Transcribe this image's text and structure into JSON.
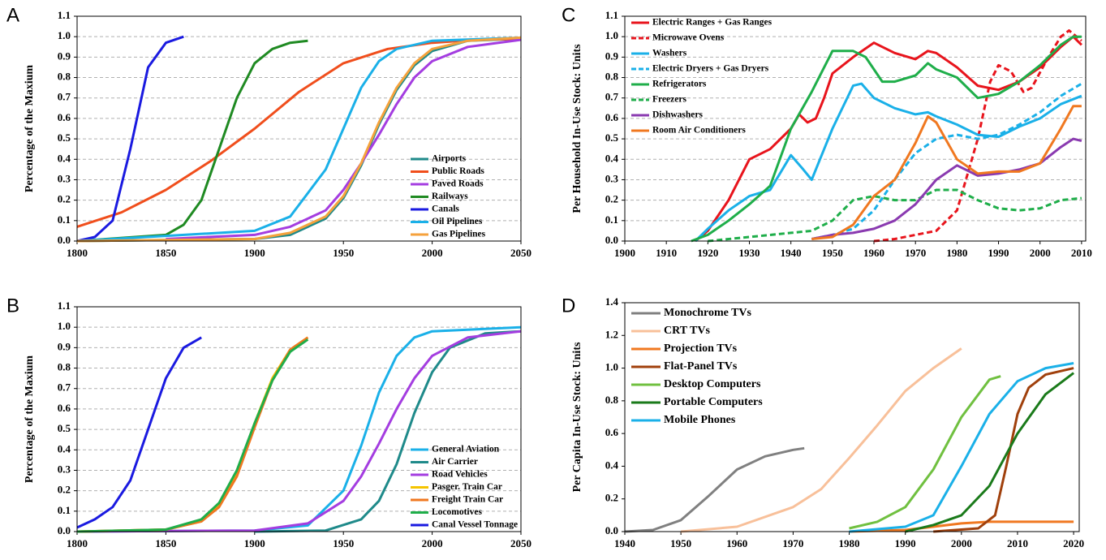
{
  "chart_data": [
    {
      "type": "line",
      "panel": "A",
      "ylabel": "Percentage of the Maxium",
      "grid": true,
      "legend": "lower right",
      "xlim": [
        1800,
        2050
      ],
      "xticks": [
        1800,
        1850,
        1900,
        1950,
        2000,
        2050
      ],
      "ylim": [
        0,
        1.1
      ],
      "yticks": [
        {
          "value": 0,
          "label": "0.0"
        },
        0.1,
        0.2,
        0.3,
        0.4,
        0.5,
        0.6,
        0.7,
        0.8,
        0.9,
        {
          "value": 1,
          "label": "1.0"
        },
        1.1
      ],
      "series": [
        {
          "name": "Airports",
          "color": "#1f8a8a",
          "x": [
            1800,
            1900,
            1920,
            1940,
            1950,
            1960,
            1970,
            1980,
            1990,
            2000,
            2020,
            2050
          ],
          "values": [
            0,
            0.01,
            0.03,
            0.11,
            0.21,
            0.37,
            0.57,
            0.74,
            0.86,
            0.93,
            0.98,
            0.99
          ]
        },
        {
          "name": "Public Roads",
          "color": "#f04e1c",
          "x": [
            1800,
            1825,
            1850,
            1875,
            1900,
            1925,
            1950,
            1975,
            2000,
            2025,
            2050
          ],
          "values": [
            0.07,
            0.14,
            0.25,
            0.39,
            0.55,
            0.73,
            0.87,
            0.94,
            0.97,
            0.985,
            0.99
          ]
        },
        {
          "name": "Paved Roads",
          "color": "#a43de0",
          "x": [
            1850,
            1900,
            1920,
            1940,
            1950,
            1960,
            1970,
            1980,
            1990,
            2000,
            2020,
            2050
          ],
          "values": [
            0.01,
            0.03,
            0.07,
            0.15,
            0.25,
            0.38,
            0.52,
            0.67,
            0.8,
            0.88,
            0.95,
            0.985
          ]
        },
        {
          "name": "Railways",
          "color": "#1f8a22",
          "x": [
            1800,
            1850,
            1860,
            1870,
            1880,
            1890,
            1900,
            1910,
            1920,
            1930
          ],
          "values": [
            0,
            0.03,
            0.08,
            0.2,
            0.45,
            0.7,
            0.87,
            0.94,
            0.97,
            0.98
          ]
        },
        {
          "name": "Canals",
          "color": "#1a1ae0",
          "x": [
            1800,
            1810,
            1820,
            1830,
            1840,
            1850,
            1860
          ],
          "values": [
            0,
            0.02,
            0.1,
            0.45,
            0.85,
            0.97,
            1.0
          ]
        },
        {
          "name": "Oil Pipelines",
          "color": "#1ab0e8",
          "x": [
            1800,
            1900,
            1920,
            1940,
            1950,
            1960,
            1970,
            1980,
            2000,
            2050
          ],
          "values": [
            0,
            0.05,
            0.12,
            0.35,
            0.55,
            0.75,
            0.88,
            0.94,
            0.98,
            0.995
          ]
        },
        {
          "name": "Gas Pipelines",
          "color": "#f5a23c",
          "x": [
            1800,
            1900,
            1920,
            1940,
            1950,
            1960,
            1970,
            1980,
            1990,
            2000,
            2020,
            2050
          ],
          "values": [
            0,
            0.01,
            0.04,
            0.12,
            0.22,
            0.38,
            0.58,
            0.75,
            0.87,
            0.94,
            0.98,
            0.995
          ]
        }
      ]
    },
    {
      "type": "line",
      "panel": "C",
      "ylabel": "Per Household In-Use Stock: Units",
      "grid": true,
      "legend": "upper left",
      "xlim": [
        1900,
        2011
      ],
      "xticks": [
        1900,
        1910,
        1920,
        1930,
        1940,
        1950,
        1960,
        1970,
        1980,
        1990,
        2000,
        2010
      ],
      "ylim": [
        0,
        1.1
      ],
      "yticks": [
        {
          "value": 0,
          "label": "0.0"
        },
        0.1,
        0.2,
        0.3,
        0.4,
        0.5,
        0.6,
        0.7,
        0.8,
        0.9,
        {
          "value": 1,
          "label": "1.0"
        },
        1.1
      ],
      "series": [
        {
          "name": "Electric Ranges + Gas Ranges",
          "color": "#e8141c",
          "dash": false,
          "x": [
            1917,
            1920,
            1925,
            1930,
            1935,
            1940,
            1942,
            1944,
            1946,
            1948,
            1950,
            1955,
            1960,
            1965,
            1970,
            1973,
            1975,
            1980,
            1985,
            1990,
            1995,
            2000,
            2005,
            2008,
            2010
          ],
          "values": [
            0,
            0.05,
            0.2,
            0.4,
            0.45,
            0.55,
            0.62,
            0.58,
            0.6,
            0.7,
            0.82,
            0.9,
            0.97,
            0.92,
            0.89,
            0.93,
            0.92,
            0.85,
            0.76,
            0.74,
            0.78,
            0.85,
            0.95,
            1.0,
            0.96
          ]
        },
        {
          "name": "Microwave Ovens",
          "color": "#e8141c",
          "dash": true,
          "x": [
            1960,
            1965,
            1970,
            1975,
            1980,
            1985,
            1988,
            1990,
            1993,
            1996,
            1998,
            2002,
            2005,
            2007,
            2010
          ],
          "values": [
            0,
            0.01,
            0.03,
            0.05,
            0.15,
            0.5,
            0.78,
            0.86,
            0.83,
            0.73,
            0.75,
            0.9,
            1.0,
            1.03,
            0.98
          ]
        },
        {
          "name": "Washers",
          "color": "#1ab0e8",
          "dash": false,
          "x": [
            1917,
            1920,
            1925,
            1930,
            1935,
            1940,
            1943,
            1945,
            1947,
            1950,
            1955,
            1957,
            1960,
            1965,
            1970,
            1973,
            1975,
            1980,
            1985,
            1990,
            1995,
            2000,
            2005,
            2010
          ],
          "values": [
            0,
            0.06,
            0.15,
            0.22,
            0.25,
            0.42,
            0.35,
            0.3,
            0.4,
            0.55,
            0.76,
            0.77,
            0.7,
            0.65,
            0.62,
            0.63,
            0.61,
            0.57,
            0.52,
            0.51,
            0.56,
            0.6,
            0.67,
            0.71
          ]
        },
        {
          "name": "Electric Dryers + Gas Dryers",
          "color": "#1ab0e8",
          "dash": true,
          "x": [
            1945,
            1950,
            1955,
            1960,
            1965,
            1970,
            1975,
            1980,
            1985,
            1990,
            1995,
            2000,
            2005,
            2010
          ],
          "values": [
            0.01,
            0.03,
            0.06,
            0.15,
            0.3,
            0.43,
            0.5,
            0.52,
            0.5,
            0.52,
            0.57,
            0.63,
            0.71,
            0.77
          ]
        },
        {
          "name": "Refrigerators",
          "color": "#1fae4a",
          "dash": false,
          "x": [
            1916,
            1920,
            1925,
            1930,
            1935,
            1940,
            1945,
            1950,
            1955,
            1958,
            1962,
            1965,
            1970,
            1973,
            1975,
            1980,
            1985,
            1990,
            1995,
            2000,
            2005,
            2008,
            2010
          ],
          "values": [
            0,
            0.03,
            0.1,
            0.18,
            0.27,
            0.55,
            0.73,
            0.93,
            0.93,
            0.9,
            0.78,
            0.78,
            0.81,
            0.87,
            0.84,
            0.8,
            0.7,
            0.72,
            0.78,
            0.86,
            0.96,
            1.0,
            1.0
          ]
        },
        {
          "name": "Freezers",
          "color": "#1fae4a",
          "dash": true,
          "x": [
            1920,
            1930,
            1940,
            1945,
            1950,
            1955,
            1960,
            1965,
            1970,
            1975,
            1980,
            1985,
            1990,
            1995,
            2000,
            2005,
            2010
          ],
          "values": [
            0,
            0.02,
            0.04,
            0.05,
            0.1,
            0.2,
            0.22,
            0.2,
            0.2,
            0.25,
            0.25,
            0.2,
            0.16,
            0.15,
            0.16,
            0.2,
            0.21
          ]
        },
        {
          "name": "Dishwashers",
          "color": "#8a3ab0",
          "dash": false,
          "x": [
            1945,
            1950,
            1955,
            1960,
            1965,
            1970,
            1975,
            1980,
            1985,
            1990,
            1995,
            2000,
            2005,
            2008,
            2010
          ],
          "values": [
            0.01,
            0.03,
            0.04,
            0.06,
            0.1,
            0.18,
            0.3,
            0.37,
            0.32,
            0.33,
            0.35,
            0.38,
            0.46,
            0.5,
            0.49
          ]
        },
        {
          "name": "Room Air Conditioners",
          "color": "#f07820",
          "dash": false,
          "x": [
            1945,
            1950,
            1955,
            1960,
            1965,
            1970,
            1973,
            1975,
            1980,
            1985,
            1990,
            1995,
            2000,
            2005,
            2008,
            2010
          ],
          "values": [
            0.01,
            0.02,
            0.08,
            0.22,
            0.3,
            0.48,
            0.61,
            0.58,
            0.4,
            0.33,
            0.34,
            0.34,
            0.38,
            0.55,
            0.66,
            0.66
          ]
        }
      ]
    },
    {
      "type": "line",
      "panel": "B",
      "ylabel": "Percentage of the Maxium",
      "grid": true,
      "legend": "lower right",
      "xlim": [
        1800,
        2050
      ],
      "xticks": [
        1800,
        1850,
        1900,
        1950,
        2000,
        2050
      ],
      "ylim": [
        0,
        1.1
      ],
      "yticks": [
        {
          "value": 0,
          "label": "0.0"
        },
        0.1,
        0.2,
        0.3,
        0.4,
        0.5,
        0.6,
        0.7,
        0.8,
        0.9,
        {
          "value": 1,
          "label": "1.0"
        },
        1.1
      ],
      "series": [
        {
          "name": "General Aviation",
          "color": "#1ab0e8",
          "x": [
            1800,
            1900,
            1930,
            1950,
            1960,
            1970,
            1980,
            1990,
            2000,
            2050
          ],
          "values": [
            0,
            0.005,
            0.03,
            0.2,
            0.42,
            0.68,
            0.86,
            0.95,
            0.98,
            1.0
          ]
        },
        {
          "name": "Air Carrier",
          "color": "#1f8a8a",
          "x": [
            1900,
            1940,
            1960,
            1970,
            1980,
            1990,
            2000,
            2010,
            2030,
            2050
          ],
          "values": [
            0,
            0.005,
            0.06,
            0.15,
            0.33,
            0.58,
            0.78,
            0.9,
            0.97,
            0.98
          ]
        },
        {
          "name": "Road Vehicles",
          "color": "#a43de0",
          "x": [
            1800,
            1900,
            1930,
            1950,
            1960,
            1970,
            1980,
            1990,
            2000,
            2020,
            2050
          ],
          "values": [
            0,
            0.005,
            0.04,
            0.15,
            0.27,
            0.43,
            0.6,
            0.75,
            0.86,
            0.95,
            0.98
          ]
        },
        {
          "name": "Pasger. Train Car",
          "color": "#f5c400",
          "x": [
            1800,
            1850,
            1870,
            1880,
            1890,
            1900,
            1910,
            1920,
            1930
          ],
          "values": [
            0,
            0.01,
            0.05,
            0.13,
            0.29,
            0.53,
            0.75,
            0.89,
            0.95
          ]
        },
        {
          "name": "Freight Train Car",
          "color": "#f07820",
          "x": [
            1800,
            1850,
            1870,
            1880,
            1890,
            1900,
            1910,
            1920,
            1930
          ],
          "values": [
            0,
            0.01,
            0.05,
            0.12,
            0.27,
            0.51,
            0.74,
            0.89,
            0.95
          ]
        },
        {
          "name": "Locomotives",
          "color": "#1fae4a",
          "x": [
            1800,
            1850,
            1870,
            1880,
            1890,
            1900,
            1910,
            1920,
            1930
          ],
          "values": [
            0,
            0.01,
            0.06,
            0.14,
            0.3,
            0.53,
            0.74,
            0.88,
            0.94
          ]
        },
        {
          "name": "Canal Vessel Tonnage",
          "color": "#1a1ae0",
          "x": [
            1800,
            1810,
            1820,
            1830,
            1840,
            1850,
            1860,
            1870
          ],
          "values": [
            0.02,
            0.06,
            0.12,
            0.25,
            0.5,
            0.75,
            0.9,
            0.95
          ]
        }
      ]
    },
    {
      "type": "line",
      "panel": "D",
      "ylabel": "Per Capita In-Use Stock: Units",
      "grid": false,
      "legend": "upper left",
      "xlim": [
        1940,
        2021
      ],
      "xticks": [
        1940,
        1950,
        1960,
        1970,
        1980,
        1990,
        2000,
        2010,
        2020
      ],
      "ylim": [
        0,
        1.4
      ],
      "yticks": [
        {
          "value": 0,
          "label": "0.0"
        },
        0.2,
        0.4,
        0.6,
        0.8,
        {
          "value": 1,
          "label": "1.0"
        },
        1.2,
        1.4
      ],
      "series": [
        {
          "name": "Monochrome TVs",
          "color": "#808080",
          "x": [
            1940,
            1945,
            1950,
            1955,
            1960,
            1965,
            1970,
            1972
          ],
          "values": [
            0,
            0.01,
            0.07,
            0.22,
            0.38,
            0.46,
            0.5,
            0.51
          ]
        },
        {
          "name": "CRT TVs",
          "color": "#f8c09a",
          "x": [
            1950,
            1960,
            1970,
            1975,
            1980,
            1985,
            1990,
            1995,
            2000
          ],
          "values": [
            0,
            0.03,
            0.15,
            0.26,
            0.45,
            0.65,
            0.86,
            1.0,
            1.12
          ]
        },
        {
          "name": "Projection TVs",
          "color": "#f07820",
          "x": [
            1980,
            1990,
            1995,
            2000,
            2005,
            2020
          ],
          "values": [
            0,
            0.01,
            0.03,
            0.05,
            0.06,
            0.06
          ]
        },
        {
          "name": "Flat-Panel TVs",
          "color": "#a0400c",
          "x": [
            1995,
            2003,
            2006,
            2008,
            2010,
            2012,
            2015,
            2020
          ],
          "values": [
            0,
            0.02,
            0.1,
            0.4,
            0.72,
            0.88,
            0.96,
            1.0
          ]
        },
        {
          "name": "Desktop Computers",
          "color": "#70c040",
          "x": [
            1980,
            1985,
            1990,
            1995,
            2000,
            2005,
            2007
          ],
          "values": [
            0.02,
            0.06,
            0.15,
            0.38,
            0.7,
            0.93,
            0.95
          ]
        },
        {
          "name": "Portable Computers",
          "color": "#1a7a1a",
          "x": [
            1990,
            1995,
            2000,
            2005,
            2010,
            2015,
            2020
          ],
          "values": [
            0,
            0.04,
            0.1,
            0.28,
            0.6,
            0.84,
            0.97
          ]
        },
        {
          "name": "Mobile Phones",
          "color": "#1ab0e8",
          "x": [
            1980,
            1990,
            1995,
            2000,
            2005,
            2010,
            2015,
            2020
          ],
          "values": [
            0,
            0.03,
            0.1,
            0.4,
            0.72,
            0.92,
            1.0,
            1.03
          ]
        }
      ]
    }
  ]
}
